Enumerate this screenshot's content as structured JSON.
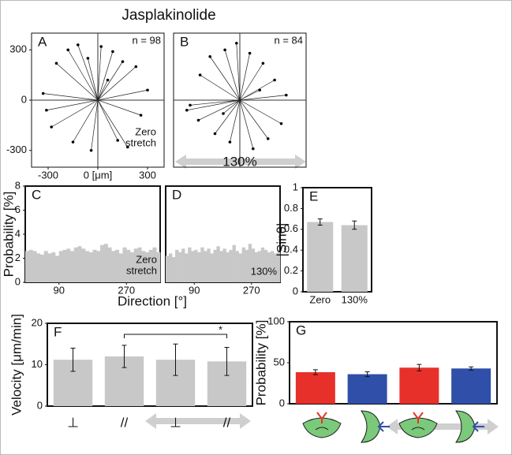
{
  "title": "Jasplakinolide",
  "chart_data": [
    {
      "type": "trajectory",
      "panel": "A",
      "n_label": "n = 98",
      "x": [
        -330,
        -250,
        -180,
        -120,
        -60,
        20,
        90,
        150,
        230,
        300,
        260,
        120,
        -40,
        -150,
        -280,
        -310,
        180,
        60
      ],
      "y": [
        40,
        220,
        300,
        330,
        250,
        320,
        290,
        230,
        200,
        60,
        -90,
        -240,
        -300,
        -250,
        -160,
        -60,
        -280,
        120
      ],
      "xlim": [
        -400,
        400
      ],
      "ylim": [
        -400,
        400
      ],
      "xticks": [
        -300,
        {
          "value": 0,
          "label": "0 [μm]"
        },
        300
      ],
      "yticks": [
        -300,
        0,
        300
      ],
      "annotation": [
        "Zero",
        "stretch"
      ]
    },
    {
      "type": "trajectory",
      "panel": "B",
      "n_label": "n = 84",
      "x": [
        -300,
        -240,
        -180,
        -90,
        -20,
        60,
        140,
        210,
        280,
        250,
        170,
        80,
        -60,
        -150,
        -250,
        -320,
        120,
        -100
      ],
      "y": [
        -30,
        150,
        260,
        300,
        340,
        280,
        220,
        120,
        30,
        -140,
        -230,
        -290,
        -250,
        -200,
        -120,
        -60,
        60,
        -80
      ],
      "xlim": [
        -400,
        400
      ],
      "ylim": [
        -400,
        400
      ],
      "annotation": "130%"
    },
    {
      "type": "histogram",
      "panel": "C",
      "color": "#c8c8c8",
      "bins": [
        0,
        10,
        20,
        30,
        40,
        50,
        60,
        70,
        80,
        90,
        100,
        110,
        120,
        130,
        140,
        150,
        160,
        170,
        180,
        190,
        200,
        210,
        220,
        230,
        240,
        250,
        260,
        270,
        280,
        290,
        300,
        310,
        320,
        330,
        340,
        350,
        360
      ],
      "values": [
        2.6,
        2.7,
        2.6,
        2.4,
        2.3,
        2.6,
        2.4,
        2.5,
        2.2,
        2.6,
        2.7,
        2.8,
        2.6,
        2.9,
        3.0,
        2.8,
        2.6,
        2.5,
        2.7,
        2.6,
        3.1,
        3.2,
        2.9,
        2.6,
        2.7,
        2.4,
        2.9,
        2.7,
        2.5,
        2.8,
        2.9,
        2.6,
        2.5,
        2.7,
        2.9,
        2.5
      ],
      "xlim": [
        0,
        360
      ],
      "ylim": [
        0,
        8
      ],
      "xticks": [
        90,
        270
      ],
      "yticks": [
        0,
        2,
        4,
        6,
        8
      ],
      "ylabel": "Probability [%]",
      "xlabel": "Direction [°]",
      "annotation": [
        "Zero",
        "stretch"
      ]
    },
    {
      "type": "histogram",
      "panel": "D",
      "color": "#c8c8c8",
      "bins": [
        0,
        10,
        20,
        30,
        40,
        50,
        60,
        70,
        80,
        90,
        100,
        110,
        120,
        130,
        140,
        150,
        160,
        170,
        180,
        190,
        200,
        210,
        220,
        230,
        240,
        250,
        260,
        270,
        280,
        290,
        300,
        310,
        320,
        330,
        340,
        350,
        360
      ],
      "values": [
        2.2,
        2.4,
        2.1,
        2.7,
        2.5,
        2.8,
        2.4,
        2.9,
        2.6,
        2.7,
        2.5,
        2.9,
        2.6,
        2.8,
        2.4,
        2.7,
        3.0,
        2.6,
        2.8,
        2.5,
        2.7,
        3.1,
        2.6,
        2.4,
        2.9,
        2.7,
        3.2,
        2.8,
        2.5,
        2.6,
        2.9,
        2.7,
        2.5,
        2.6,
        2.4,
        2.5
      ],
      "xlim": [
        0,
        360
      ],
      "ylim": [
        0,
        8
      ],
      "xticks": [
        90,
        270
      ],
      "annotation": "130%"
    },
    {
      "type": "bar",
      "panel": "E",
      "color": "#c8c8c8",
      "categories": [
        "Zero",
        "130%"
      ],
      "values": [
        0.67,
        0.64
      ],
      "errors": [
        0.03,
        0.04
      ],
      "ylim": [
        0,
        1
      ],
      "yticks": [
        0,
        0.2,
        0.4,
        0.6,
        0.8,
        1
      ],
      "ylabel": "|Sinθ|"
    },
    {
      "type": "bar",
      "panel": "F",
      "color": "#c8c8c8",
      "categories": [
        "⊥",
        "//",
        "⊥",
        "//"
      ],
      "values": [
        11.2,
        12,
        11.2,
        10.8
      ],
      "errors": [
        2.8,
        2.7,
        3.8,
        3.4
      ],
      "ylim": [
        0,
        20
      ],
      "yticks": [
        0,
        10,
        20
      ],
      "ylabel": "Velocity [μm/min]",
      "significance": "*"
    },
    {
      "type": "bar",
      "panel": "G",
      "colors": [
        "#e8302a",
        "#2f4fa8",
        "#e8302a",
        "#2f4fa8"
      ],
      "values": [
        38.5,
        36,
        44,
        43
      ],
      "errors": [
        3,
        3,
        4,
        2
      ],
      "ylim": [
        0,
        100
      ],
      "yticks": [
        0,
        50,
        100
      ],
      "ylabel": "Probability [%]"
    }
  ]
}
